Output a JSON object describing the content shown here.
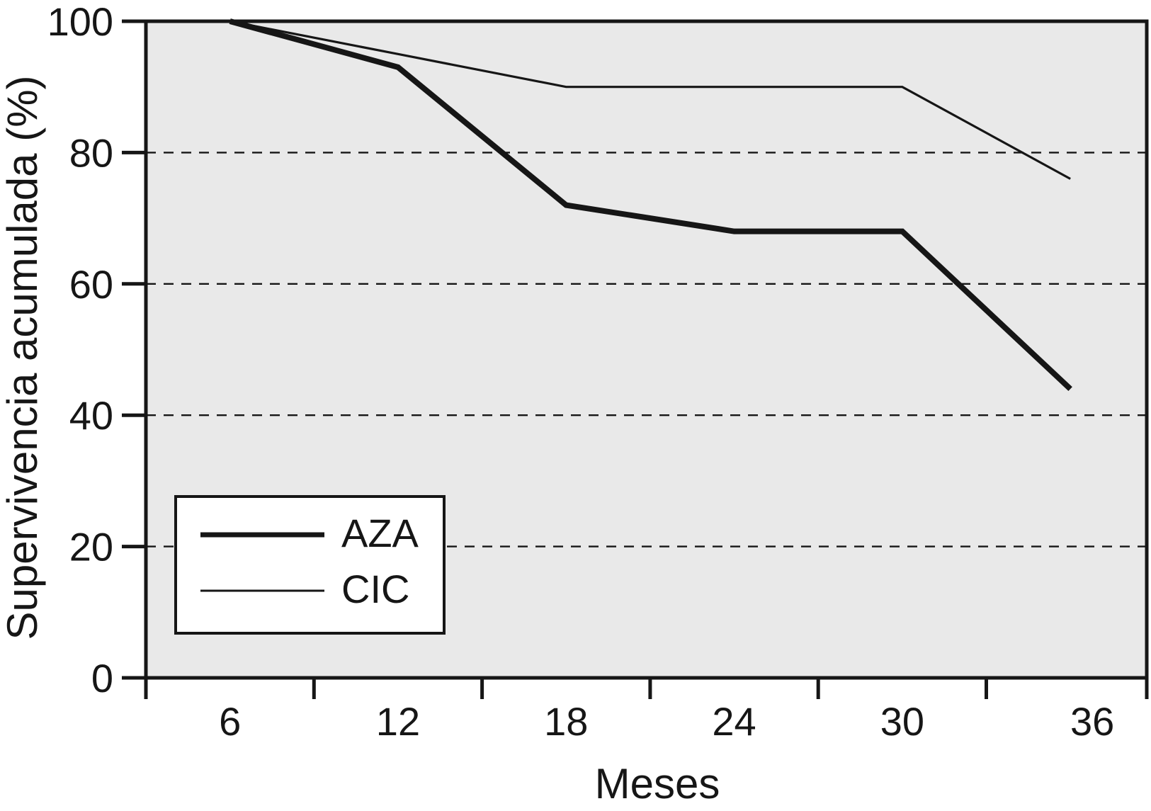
{
  "chart_data": {
    "type": "line",
    "title": "",
    "xlabel": "Meses",
    "ylabel": "Supervivencia acumulada (%)",
    "x": [
      6,
      12,
      18,
      24,
      30,
      36
    ],
    "series": [
      {
        "name": "AZA",
        "style": "thick",
        "values": [
          100,
          93,
          72,
          68,
          68,
          44
        ]
      },
      {
        "name": "CIC",
        "style": "thin",
        "values": [
          100,
          95,
          90,
          90,
          90,
          76
        ]
      }
    ],
    "ylim": [
      0,
      100
    ],
    "y_ticks": [
      0,
      20,
      40,
      60,
      80,
      100
    ],
    "gridlines_y": [
      20,
      40,
      60,
      80
    ],
    "grid_style": "dashed",
    "legend_position": "lower-left",
    "legend_items": [
      "AZA",
      "CIC"
    ],
    "plot_bg_color": "#e9e9e9",
    "line_color": "#161616",
    "outer_bg_color": "#ffffff"
  }
}
